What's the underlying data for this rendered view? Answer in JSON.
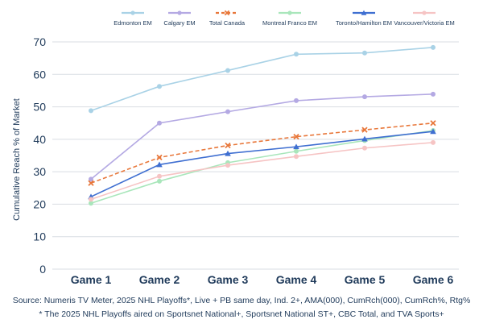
{
  "chart_data": {
    "type": "line",
    "categories": [
      "Game 1",
      "Game 2",
      "Game 3",
      "Game 4",
      "Game 5",
      "Game 6"
    ],
    "ylabel": "Cumulative Reach % of Market",
    "ylim": [
      0,
      70
    ],
    "yticks": [
      0,
      10,
      20,
      30,
      40,
      50,
      60,
      70
    ],
    "grid": "horizontal",
    "legend_position": "top",
    "series": [
      {
        "name": "Edmonton EM",
        "color": "#a9d2e6",
        "marker": "circle",
        "dashed": false,
        "values": [
          48.8,
          56.3,
          61.2,
          66.2,
          66.6,
          68.3
        ]
      },
      {
        "name": "Calgary EM",
        "color": "#b4a9e3",
        "marker": "circle",
        "dashed": false,
        "values": [
          27.7,
          45.0,
          48.5,
          51.9,
          53.1,
          53.9
        ]
      },
      {
        "name": "Total Canada",
        "color": "#e8773a",
        "marker": "x",
        "dashed": true,
        "values": [
          26.5,
          34.4,
          38.1,
          40.8,
          42.9,
          45.0
        ]
      },
      {
        "name": "Montreal Franco EM",
        "color": "#a9e6bb",
        "marker": "circle",
        "dashed": false,
        "values": [
          20.3,
          27.1,
          32.8,
          36.3,
          39.6,
          42.7
        ]
      },
      {
        "name": "Toronto/Hamilton EM",
        "color": "#3f6fd1",
        "marker": "triangle",
        "dashed": false,
        "values": [
          22.3,
          32.2,
          35.6,
          37.7,
          40.1,
          42.4
        ]
      },
      {
        "name": "Vancouver/Victoria EM",
        "color": "#f6c4c4",
        "marker": "circle",
        "dashed": false,
        "values": [
          21.5,
          28.6,
          32.0,
          34.7,
          37.3,
          39.0
        ]
      }
    ]
  },
  "source_line_1": "Source: Numeris TV Meter, 2025 NHL Playoffs*, Live + PB same day, Ind. 2+, AMA(000), CumRch(000), CumRch%, Rtg%",
  "source_line_2": "* The 2025 NHL Playoffs aired on Sportsnet National+, Sportsnet National ST+, CBC Total, and TVA Sports+"
}
